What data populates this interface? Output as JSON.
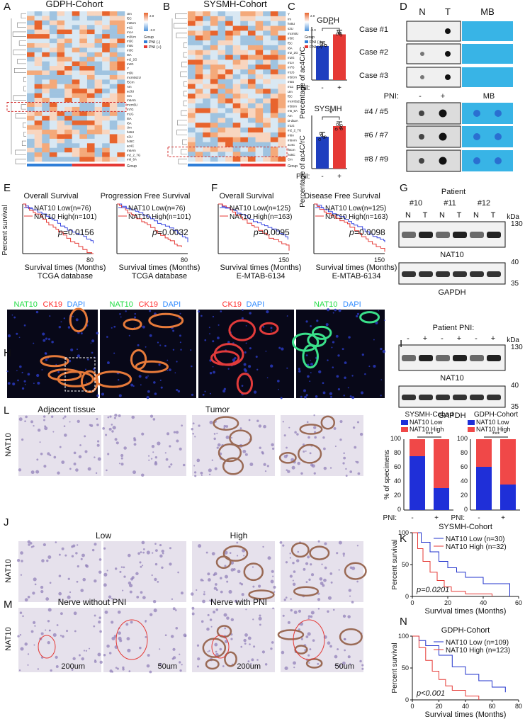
{
  "panel_letters": [
    "A",
    "B",
    "C",
    "D",
    "E",
    "F",
    "G",
    "H",
    "I",
    "J",
    "K",
    "L",
    "M",
    "N"
  ],
  "heatmaps": [
    {
      "title": "GDPH-Cohort",
      "rows": [
        "Um",
        "f5C",
        "m5Um",
        "m11",
        "m1A",
        "m3Um",
        "m5C",
        "m5U",
        "m5C",
        "I6A",
        "m2_2G",
        "m2G",
        "Y",
        "m5U",
        "mcm5s2U",
        "f5Cm",
        "Am",
        "ac3U",
        "Cm",
        "m6Am",
        "mcm5U",
        "m7G",
        "m1G",
        "t6A",
        "I6A",
        "Um",
        "hs6U",
        "s2U",
        "ho5C",
        "ac4C",
        "m6Am",
        "m2_2_7G",
        "m6_6A"
      ],
      "legend_title": "Group",
      "legend": [
        "PNI (-)",
        "PNI (+)"
      ],
      "scale": [
        "2.0",
        "-2.0"
      ],
      "group_label": "Group"
    },
    {
      "title": "SYSMH-Cohort",
      "rows": [
        "Y",
        "Im",
        "hs6U",
        "s2U",
        "mcm5U",
        "m5C",
        "f5C",
        "I6A",
        "m2_2G",
        "m2G",
        "m1A",
        "m7G",
        "m1G",
        "m5Cm",
        "m5U",
        "m11",
        "Um",
        "f5C",
        "mcm5s2U",
        "m5Um",
        "m6_6A",
        "Am",
        "D-dsaA",
        "m1G",
        "m2_2_7G",
        "m6A",
        "m6Am",
        "ac4C",
        "f5Cm",
        "ho5C",
        "Cm"
      ],
      "legend_title": "Group",
      "legend": [
        "PNI (-)",
        "PNI (+)"
      ],
      "scale": [
        "2.0",
        "-2.0"
      ],
      "group_label": "Group"
    }
  ],
  "bar_c": [
    {
      "title": "GDPH",
      "ylabel": "Percentage of ac4C/rC",
      "sig": "**",
      "pni_label": "PNI:",
      "ticks": [
        "-",
        "+"
      ]
    },
    {
      "title": "SYSMH",
      "ylabel": "Percentage of ac4C/rC",
      "sig": "*",
      "pni_label": "PNI:",
      "ticks": [
        "-",
        "+"
      ]
    }
  ],
  "dot_blot": {
    "col_labels": [
      "N",
      "T",
      "MB"
    ],
    "cases": [
      "Case #1",
      "Case #2",
      "Case #3"
    ],
    "pni_label": "PNI:",
    "pni_ticks": [
      "-",
      "+"
    ],
    "mb_label": "MB",
    "pairs": [
      "#4 / #5",
      "#6 / #7",
      "#8 / #9"
    ]
  },
  "km_e_f": [
    {
      "title": "Overall Survival",
      "low": "NAT10 Low(n=76)",
      "high": "NAT10 High(n=101)",
      "p": "=0.0156",
      "xmax": "80",
      "source": "TCGA database"
    },
    {
      "title": "Progression Free Survival",
      "low": "NAT10 Low(n=76)",
      "high": "NAT10 High(n=101)",
      "p": "=0.0032",
      "xmax": "80",
      "source": "TCGA database"
    },
    {
      "title": "Overall Survival",
      "low": "NAT10 Low(n=125)",
      "high": "NAT10 High(n=163)",
      "p": "=0.0095",
      "xmax": "150",
      "source": "E-MTAB-6134"
    },
    {
      "title": "Disease Free Survival",
      "low": "NAT10 Low(n=125)",
      "high": "NAT10 High(n=163)",
      "p": "=0.0098",
      "xmax": "150",
      "source": "E-MTAB-6134"
    }
  ],
  "km_common": {
    "ylabel": "Percent survival",
    "xlabel": "Survival times (Months)",
    "p_letter": "p"
  },
  "western_i": {
    "patient": "Patient",
    "ids": [
      "#10",
      "#11",
      "#12"
    ],
    "lanes": [
      "N",
      "T",
      "N",
      "T",
      "N",
      "T"
    ],
    "kda": "kDa",
    "markers": [
      "130",
      "40",
      "35"
    ],
    "proteins": [
      "NAT10",
      "GAPDH"
    ]
  },
  "western_pni": {
    "header": "Patient  PNI:",
    "lanes": [
      "-",
      "+",
      "-",
      "+",
      "-",
      "+"
    ],
    "kda": "kDa",
    "markers": [
      "130",
      "40",
      "35"
    ],
    "proteins": [
      "NAT10",
      "GAPDH"
    ]
  },
  "if_g": {
    "channels": [
      [
        "NAT10",
        "CK19",
        "DAPI"
      ],
      [
        "NAT10",
        "CK19",
        "DAPI"
      ],
      [
        "CK19",
        "DAPI"
      ],
      [
        "NAT10",
        "DAPI"
      ]
    ]
  },
  "ihc": {
    "h_labels": [
      "Adjacent tissue",
      "Tumor"
    ],
    "j_labels": [
      "Low",
      "High"
    ],
    "k_labels": [
      "Nerve without PNI",
      "Nerve with PNI"
    ],
    "row_label": "NAT10",
    "scalebars": [
      "200um",
      "50um",
      "200um",
      "50um"
    ]
  },
  "bar_l": [
    {
      "title": "SYSMH-Cohort",
      "legend": [
        "NAT10 Low",
        "NAT10 High"
      ],
      "sig": "***",
      "low": [
        76,
        31
      ]
    },
    {
      "title": "GDPH-Cohort",
      "legend": [
        "NAT10 Low",
        "NAT10 High"
      ],
      "sig": "***",
      "low": [
        61,
        36
      ]
    }
  ],
  "bar_l_common": {
    "ylabel": "% of specimens",
    "yticks": [
      "0",
      "20",
      "40",
      "60",
      "80",
      "100"
    ],
    "pni_label": "PNI:",
    "ticks": [
      "-",
      "+"
    ]
  },
  "chart_data": [
    {
      "type": "bar",
      "title": "GDPH",
      "categories": [
        "-",
        "+"
      ],
      "values": [
        0.32,
        0.43
      ],
      "ylabel": "Percentage of ac4C/rC",
      "xlabel": "PNI:"
    },
    {
      "type": "bar",
      "title": "SYSMH",
      "categories": [
        "-",
        "+"
      ],
      "values": [
        0.3,
        0.4
      ],
      "ylabel": "Percentage of ac4C/rC",
      "xlabel": "PNI:"
    },
    {
      "type": "bar",
      "title": "SYSMH-Cohort",
      "categories": [
        "-",
        "+"
      ],
      "series": [
        {
          "name": "NAT10 Low",
          "values": [
            76,
            31
          ]
        },
        {
          "name": "NAT10 High",
          "values": [
            24,
            69
          ]
        }
      ],
      "ylabel": "% of specimens",
      "ylim": [
        0,
        100
      ]
    },
    {
      "type": "bar",
      "title": "GDPH-Cohort",
      "categories": [
        "-",
        "+"
      ],
      "series": [
        {
          "name": "NAT10 Low",
          "values": [
            61,
            36
          ]
        },
        {
          "name": "NAT10 High",
          "values": [
            39,
            64
          ]
        }
      ],
      "ylabel": "% of specimens",
      "ylim": [
        0,
        100
      ]
    },
    {
      "type": "line",
      "title": "SYSMH-Cohort",
      "ylabel": "Percent survival",
      "xlabel": "Survival times (Months)",
      "xlim": [
        0,
        60
      ],
      "ylim": [
        0,
        100
      ],
      "xticks": [
        0,
        20,
        40,
        60
      ],
      "yticks": [
        0,
        50,
        100
      ],
      "p_value": "p=0.0201",
      "series": [
        {
          "name": "NAT10 Low (n=30)",
          "x": [
            0,
            5,
            10,
            15,
            20,
            25,
            30,
            40,
            55
          ],
          "y": [
            100,
            85,
            70,
            55,
            45,
            38,
            30,
            20,
            0
          ]
        },
        {
          "name": "NAT10 High (n=32)",
          "x": [
            0,
            3,
            6,
            10,
            14,
            18,
            22,
            30,
            45
          ],
          "y": [
            100,
            75,
            55,
            38,
            25,
            15,
            8,
            4,
            0
          ]
        }
      ]
    },
    {
      "type": "line",
      "title": "GDPH-Cohort",
      "ylabel": "Percent survival",
      "xlabel": "Survival times (Months)",
      "xlim": [
        0,
        80
      ],
      "ylim": [
        0,
        100
      ],
      "xticks": [
        0,
        20,
        40,
        60,
        80
      ],
      "yticks": [
        0,
        50,
        100
      ],
      "p_value": "p<0.001",
      "series": [
        {
          "name": "NAT10 Low (n=109)",
          "x": [
            0,
            5,
            10,
            20,
            30,
            40,
            50,
            60,
            70
          ],
          "y": [
            100,
            93,
            85,
            70,
            52,
            40,
            30,
            20,
            12
          ]
        },
        {
          "name": "NAT10 High (n=123)",
          "x": [
            0,
            5,
            10,
            15,
            20,
            25,
            30,
            40,
            50
          ],
          "y": [
            100,
            82,
            62,
            45,
            32,
            22,
            15,
            6,
            0
          ]
        }
      ]
    }
  ]
}
